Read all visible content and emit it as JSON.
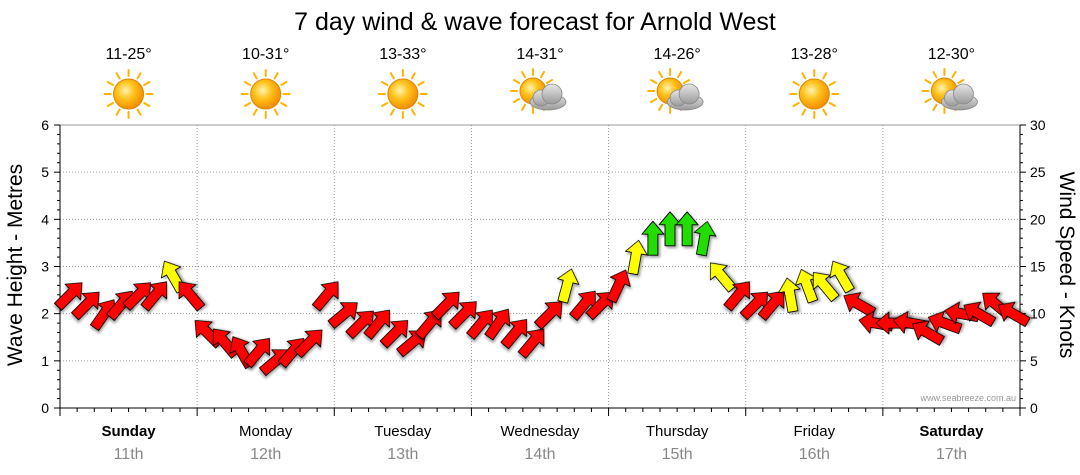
{
  "colors": {
    "calm": "#22dd00",
    "moderate": "#ffff00",
    "strong": "#ff0000",
    "arrow_outline": "#000000",
    "grid": "#999999",
    "sun": "#ffb300",
    "cloud": "#b8b8b8"
  },
  "chart_data": {
    "type": "line",
    "title": "7 day wind & wave forecast for Arnold West",
    "ylabel": "Wave Height - Metres",
    "y2label": "Wind Speed - Knots",
    "ylim": [
      0,
      6
    ],
    "y2lim": [
      0,
      30
    ],
    "yticks": [
      "0",
      "1",
      "2",
      "3",
      "4",
      "5",
      "6"
    ],
    "y2ticks": [
      "0",
      "5",
      "10",
      "15",
      "20",
      "25",
      "30"
    ],
    "watermark": "www.seabreeze.com.au",
    "grid": true,
    "days": [
      {
        "name": "Sunday",
        "date": "11th",
        "temp": "11-25°",
        "icon": "sun-icon",
        "bold": true
      },
      {
        "name": "Monday",
        "date": "12th",
        "temp": "10-31°",
        "icon": "sun-icon",
        "bold": false
      },
      {
        "name": "Tuesday",
        "date": "13th",
        "temp": "13-33°",
        "icon": "sun-icon",
        "bold": false
      },
      {
        "name": "Wednesday",
        "date": "14th",
        "temp": "14-31°",
        "icon": "partly-cloudy-icon",
        "bold": false
      },
      {
        "name": "Thursday",
        "date": "15th",
        "temp": "14-26°",
        "icon": "partly-cloudy-icon",
        "bold": false
      },
      {
        "name": "Friday",
        "date": "16th",
        "temp": "13-28°",
        "icon": "sun-icon",
        "bold": false
      },
      {
        "name": "Saturday",
        "date": "17th",
        "temp": "12-30°",
        "icon": "partly-cloudy-icon",
        "bold": true
      }
    ],
    "series": [
      {
        "kind": "wind",
        "x_hours": [
          0,
          3,
          6,
          9,
          12,
          15,
          18,
          21,
          24,
          27,
          30,
          33,
          36,
          39,
          42,
          45,
          48,
          51,
          54,
          57,
          60,
          63,
          66,
          69,
          72,
          75,
          78,
          81,
          84,
          87,
          90,
          93,
          96,
          99,
          102,
          105,
          108,
          111,
          114,
          117,
          120,
          123,
          126,
          129,
          132,
          135,
          138,
          141,
          144,
          147,
          150,
          153,
          156,
          159,
          162,
          165
        ],
        "speed_knots": [
          12,
          11,
          10,
          11,
          12,
          12,
          14,
          12,
          8,
          7,
          6,
          6,
          5,
          6,
          7,
          12,
          10,
          9,
          9,
          8,
          7,
          9,
          11,
          10,
          9,
          9,
          8,
          7,
          10,
          13,
          11,
          11,
          13,
          16,
          18,
          19,
          19,
          18,
          14,
          12,
          11,
          11,
          12,
          13,
          13,
          14,
          11,
          9,
          9,
          9,
          8,
          9,
          10,
          10,
          11,
          10
        ],
        "direction_deg": [
          45,
          45,
          35,
          40,
          45,
          40,
          330,
          320,
          315,
          320,
          330,
          40,
          50,
          40,
          45,
          40,
          50,
          45,
          40,
          45,
          50,
          40,
          45,
          45,
          40,
          35,
          40,
          40,
          45,
          15,
          40,
          45,
          25,
          10,
          0,
          0,
          0,
          10,
          320,
          40,
          45,
          40,
          350,
          340,
          320,
          330,
          300,
          280,
          270,
          280,
          300,
          290,
          280,
          300,
          310,
          300
        ],
        "color_class": [
          "strong",
          "strong",
          "strong",
          "strong",
          "strong",
          "strong",
          "moderate",
          "strong",
          "strong",
          "strong",
          "strong",
          "strong",
          "strong",
          "strong",
          "strong",
          "strong",
          "strong",
          "strong",
          "strong",
          "strong",
          "strong",
          "strong",
          "strong",
          "strong",
          "strong",
          "strong",
          "strong",
          "strong",
          "strong",
          "moderate",
          "strong",
          "strong",
          "strong",
          "moderate",
          "calm",
          "calm",
          "calm",
          "calm",
          "moderate",
          "strong",
          "strong",
          "strong",
          "moderate",
          "moderate",
          "moderate",
          "moderate",
          "strong",
          "strong",
          "strong",
          "strong",
          "strong",
          "strong",
          "strong",
          "strong",
          "strong",
          "strong"
        ]
      }
    ]
  }
}
